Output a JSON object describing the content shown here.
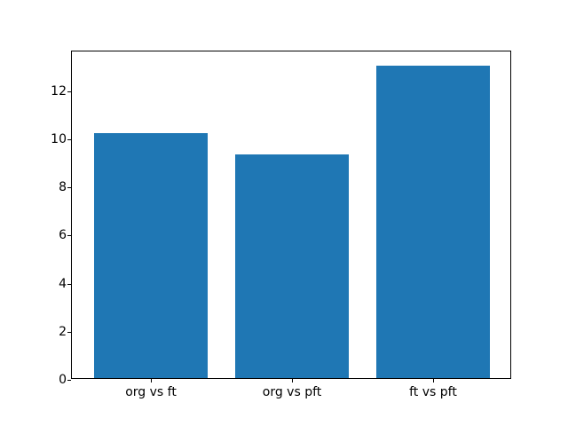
{
  "chart_data": {
    "type": "bar",
    "title": "",
    "xlabel": "",
    "ylabel": "",
    "categories": [
      "org vs ft",
      "org vs pft",
      "ft vs pft"
    ],
    "values": [
      10.2,
      9.3,
      13.0
    ],
    "bar_color": "#1f77b4",
    "bar_width": 0.8,
    "xlim": [
      -0.56,
      2.56
    ],
    "ylim": [
      0,
      13.65
    ],
    "yticks": [
      0,
      2,
      4,
      6,
      8,
      10,
      12
    ],
    "grid": false,
    "legend": null,
    "background_color": "#ffffff",
    "spine_color": "#000000"
  }
}
